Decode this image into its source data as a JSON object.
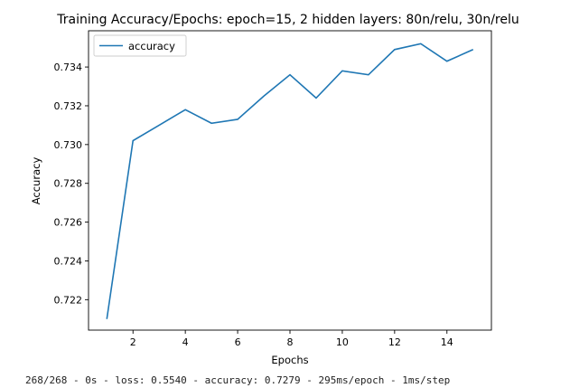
{
  "chart_data": {
    "type": "line",
    "title": "Training Accuracy/Epochs: epoch=15, 2 hidden layers: 80n/relu, 30n/relu",
    "xlabel": "Epochs",
    "ylabel": "Accuracy",
    "x": [
      1,
      2,
      3,
      4,
      5,
      6,
      7,
      8,
      9,
      10,
      11,
      12,
      13,
      14,
      15
    ],
    "series": [
      {
        "name": "accuracy",
        "values": [
          0.721,
          0.7302,
          0.731,
          0.7318,
          0.7311,
          0.7313,
          0.7325,
          0.7336,
          0.7324,
          0.7338,
          0.7336,
          0.7349,
          0.7352,
          0.7343,
          0.7349
        ],
        "color": "#1f77b4"
      }
    ],
    "xlim": [
      0.3,
      15.7
    ],
    "ylim": [
      0.72043,
      0.73587
    ],
    "xticks": [
      2,
      4,
      6,
      8,
      10,
      12,
      14
    ],
    "yticks": [
      0.722,
      0.724,
      0.726,
      0.728,
      0.73,
      0.732,
      0.734
    ],
    "grid": false,
    "legend": "upper-left"
  },
  "log": {
    "text": "268/268 - 0s - loss: 0.5540 - accuracy: 0.7279 - 295ms/epoch - 1ms/step"
  }
}
